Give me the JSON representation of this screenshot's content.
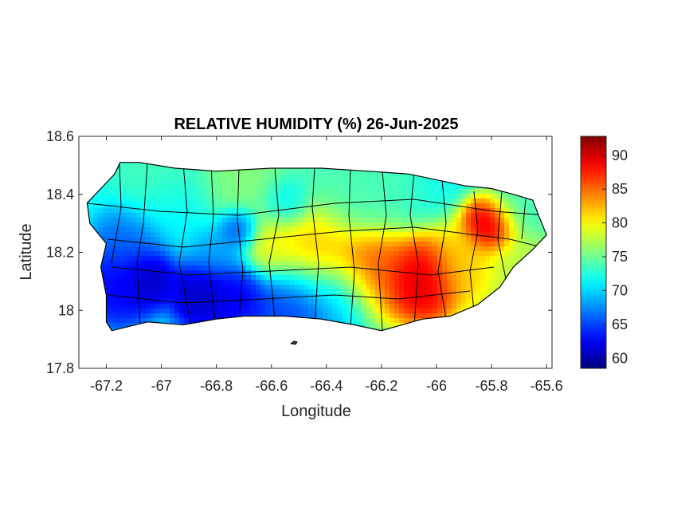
{
  "chart_data": {
    "type": "heatmap",
    "title": "RELATIVE HUMIDITY (%) 26-Jun-2025",
    "xlabel": "Longitude",
    "ylabel": "Latitude",
    "xlim": [
      -67.3,
      -65.58
    ],
    "ylim": [
      17.8,
      18.6
    ],
    "xticks": [
      -67.2,
      -67,
      -66.8,
      -66.6,
      -66.4,
      -66.2,
      -66,
      -65.8,
      -65.6
    ],
    "xtick_labels": [
      "-67.2",
      "-67",
      "-66.8",
      "-66.6",
      "-66.4",
      "-66.2",
      "-66",
      "-65.8",
      "-65.6"
    ],
    "yticks": [
      17.8,
      18,
      18.2,
      18.4,
      18.6
    ],
    "ytick_labels": [
      "17.8",
      "18",
      "18.2",
      "18.4",
      "18.6"
    ],
    "colorbar": {
      "colormap": "jet",
      "range": [
        58.5,
        92.8
      ],
      "ticks": [
        60,
        65,
        70,
        75,
        80,
        85,
        90
      ],
      "tick_labels": [
        "60",
        "65",
        "70",
        "75",
        "80",
        "85",
        "90"
      ]
    },
    "grid": false,
    "field_features": [
      {
        "lon": -65.8,
        "lat": 18.29,
        "value": 92,
        "sigma": 0.05
      },
      {
        "lon": -66.05,
        "lat": 18.1,
        "value": 91,
        "sigma": 0.07
      },
      {
        "lon": -66.25,
        "lat": 18.13,
        "value": 87,
        "sigma": 0.08
      },
      {
        "lon": -66.45,
        "lat": 18.2,
        "value": 83,
        "sigma": 0.09
      },
      {
        "lon": -66.6,
        "lat": 18.22,
        "value": 80,
        "sigma": 0.06
      },
      {
        "lon": -65.9,
        "lat": 18.15,
        "value": 82,
        "sigma": 0.07
      },
      {
        "lon": -65.7,
        "lat": 18.15,
        "value": 78,
        "sigma": 0.07
      },
      {
        "lon": -65.7,
        "lat": 18.35,
        "value": 74,
        "sigma": 0.06
      },
      {
        "lon": -66.3,
        "lat": 18.42,
        "value": 74,
        "sigma": 0.1
      },
      {
        "lon": -66.7,
        "lat": 18.44,
        "value": 76,
        "sigma": 0.1
      },
      {
        "lon": -67.0,
        "lat": 18.45,
        "value": 74,
        "sigma": 0.08
      },
      {
        "lon": -66.95,
        "lat": 18.35,
        "value": 71,
        "sigma": 0.08
      },
      {
        "lon": -66.52,
        "lat": 18.04,
        "value": 64,
        "sigma": 0.08
      },
      {
        "lon": -66.72,
        "lat": 18.05,
        "value": 62,
        "sigma": 0.06
      },
      {
        "lon": -66.85,
        "lat": 18.06,
        "value": 60,
        "sigma": 0.06
      },
      {
        "lon": -67.05,
        "lat": 18.12,
        "value": 59,
        "sigma": 0.05
      },
      {
        "lon": -67.15,
        "lat": 18.09,
        "value": 62,
        "sigma": 0.07
      },
      {
        "lon": -67.1,
        "lat": 18.22,
        "value": 66,
        "sigma": 0.07
      },
      {
        "lon": -66.72,
        "lat": 18.28,
        "value": 63,
        "sigma": 0.04
      },
      {
        "lon": -66.35,
        "lat": 18.05,
        "value": 68,
        "sigma": 0.07
      },
      {
        "lon": -66.8,
        "lat": 18.2,
        "value": 68,
        "sigma": 0.06
      },
      {
        "lon": -66.55,
        "lat": 18.37,
        "value": 70,
        "sigma": 0.05
      }
    ],
    "coastline": [
      [
        -67.27,
        18.37
      ],
      [
        -67.22,
        18.42
      ],
      [
        -67.17,
        18.47
      ],
      [
        -67.15,
        18.51
      ],
      [
        -67.08,
        18.51
      ],
      [
        -66.95,
        18.49
      ],
      [
        -66.8,
        18.48
      ],
      [
        -66.6,
        18.49
      ],
      [
        -66.42,
        18.49
      ],
      [
        -66.25,
        18.48
      ],
      [
        -66.1,
        18.47
      ],
      [
        -66.0,
        18.45
      ],
      [
        -65.9,
        18.43
      ],
      [
        -65.8,
        18.42
      ],
      [
        -65.72,
        18.4
      ],
      [
        -65.65,
        18.38
      ],
      [
        -65.63,
        18.33
      ],
      [
        -65.6,
        18.26
      ],
      [
        -65.65,
        18.21
      ],
      [
        -65.72,
        18.15
      ],
      [
        -65.77,
        18.08
      ],
      [
        -65.85,
        18.02
      ],
      [
        -65.95,
        17.98
      ],
      [
        -66.05,
        17.97
      ],
      [
        -66.2,
        17.93
      ],
      [
        -66.3,
        17.95
      ],
      [
        -66.42,
        17.97
      ],
      [
        -66.55,
        17.98
      ],
      [
        -66.7,
        17.98
      ],
      [
        -66.8,
        17.97
      ],
      [
        -66.92,
        17.95
      ],
      [
        -67.05,
        17.96
      ],
      [
        -67.18,
        17.93
      ],
      [
        -67.2,
        17.96
      ],
      [
        -67.2,
        18.05
      ],
      [
        -67.22,
        18.15
      ],
      [
        -67.2,
        18.23
      ],
      [
        -67.26,
        18.3
      ]
    ]
  }
}
